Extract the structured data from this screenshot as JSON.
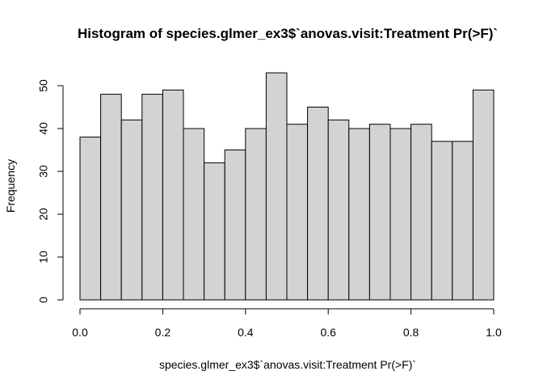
{
  "chart_data": {
    "type": "bar",
    "title": "Histogram of species.glmer_ex3$`anovas.visit:Treatment Pr(>F)`",
    "xlabel": "species.glmer_ex3$`anovas.visit:Treatment Pr(>F)`",
    "ylabel": "Frequency",
    "bin_edges": [
      0.0,
      0.05,
      0.1,
      0.15,
      0.2,
      0.25,
      0.3,
      0.35,
      0.4,
      0.45,
      0.5,
      0.55,
      0.6,
      0.65,
      0.7,
      0.75,
      0.8,
      0.85,
      0.9,
      0.95,
      1.0
    ],
    "values": [
      38,
      48,
      42,
      48,
      49,
      40,
      32,
      35,
      40,
      53,
      41,
      45,
      42,
      40,
      41,
      40,
      41,
      37,
      37,
      49
    ],
    "xlim": [
      0,
      1
    ],
    "ylim": [
      0,
      53
    ],
    "xticks": [
      "0.0",
      "0.2",
      "0.4",
      "0.6",
      "0.8",
      "1.0"
    ],
    "yticks": [
      "0",
      "10",
      "20",
      "30",
      "40",
      "50"
    ],
    "bar_color": "#d3d3d3",
    "edge_color": "#000000",
    "grid": false,
    "legend": "none"
  }
}
